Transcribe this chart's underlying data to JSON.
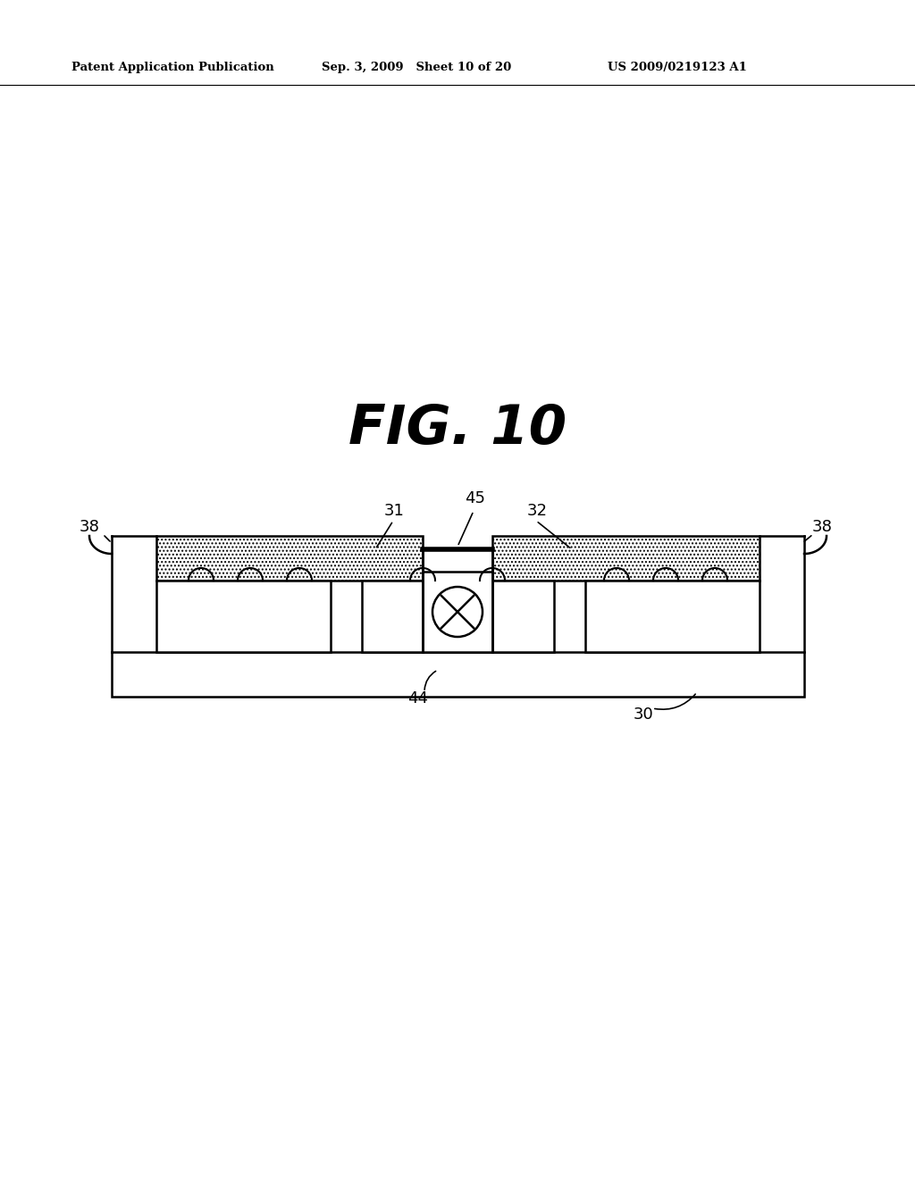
{
  "bg_color": "#ffffff",
  "line_color": "#000000",
  "header_left": "Patent Application Publication",
  "header_mid": "Sep. 3, 2009   Sheet 10 of 20",
  "header_right": "US 2009/0219123 A1",
  "fig_title": "FIG. 10",
  "label_fs": 13,
  "lw": 1.8
}
